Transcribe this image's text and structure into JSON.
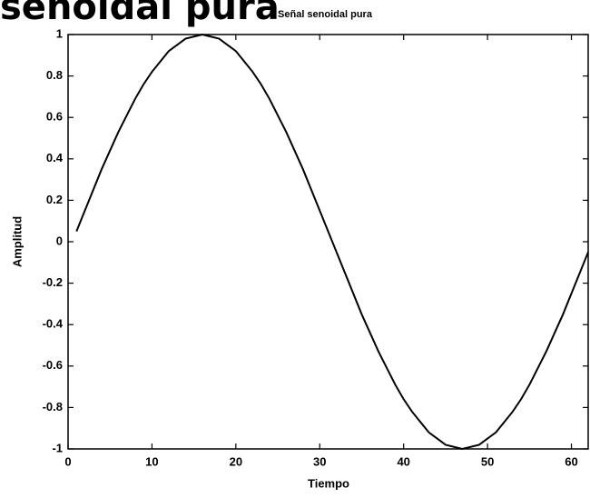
{
  "heading": "senoidal pura",
  "chart_data": {
    "type": "line",
    "title": "Señal senoidal pura",
    "xlabel": "Tiempo",
    "ylabel": "Amplitud",
    "x": [
      1,
      2,
      3,
      4,
      5,
      6,
      7,
      8,
      9,
      10,
      11,
      12,
      13,
      14,
      15,
      16,
      17,
      18,
      19,
      20,
      21,
      22,
      23,
      24,
      25,
      26,
      27,
      28,
      29,
      30,
      31,
      32,
      33,
      34,
      35,
      36,
      37,
      38,
      39,
      40,
      41,
      42,
      43,
      44,
      45,
      46,
      47,
      48,
      49,
      50,
      51,
      52,
      53,
      54,
      55,
      56,
      57,
      58,
      59,
      60,
      61,
      62
    ],
    "values": [
      0.05,
      0.15,
      0.25,
      0.35,
      0.44,
      0.53,
      0.61,
      0.69,
      0.76,
      0.82,
      0.87,
      0.92,
      0.95,
      0.98,
      0.99,
      1.0,
      0.99,
      0.98,
      0.95,
      0.92,
      0.87,
      0.82,
      0.76,
      0.69,
      0.61,
      0.53,
      0.44,
      0.35,
      0.25,
      0.15,
      0.05,
      -0.05,
      -0.15,
      -0.25,
      -0.35,
      -0.44,
      -0.53,
      -0.61,
      -0.69,
      -0.76,
      -0.82,
      -0.87,
      -0.92,
      -0.95,
      -0.98,
      -0.99,
      -1.0,
      -0.99,
      -0.98,
      -0.95,
      -0.92,
      -0.87,
      -0.82,
      -0.76,
      -0.69,
      -0.61,
      -0.53,
      -0.44,
      -0.35,
      -0.25,
      -0.15,
      -0.05
    ],
    "color": "#000000",
    "xlim": [
      0,
      62
    ],
    "xticks": [
      0,
      10,
      20,
      30,
      40,
      50,
      60
    ],
    "ylim": [
      -1,
      1
    ],
    "yticks": [
      -1,
      -0.8,
      -0.6,
      -0.4,
      -0.2,
      0,
      0.2,
      0.4,
      0.6,
      0.8,
      1
    ],
    "grid": false
  }
}
